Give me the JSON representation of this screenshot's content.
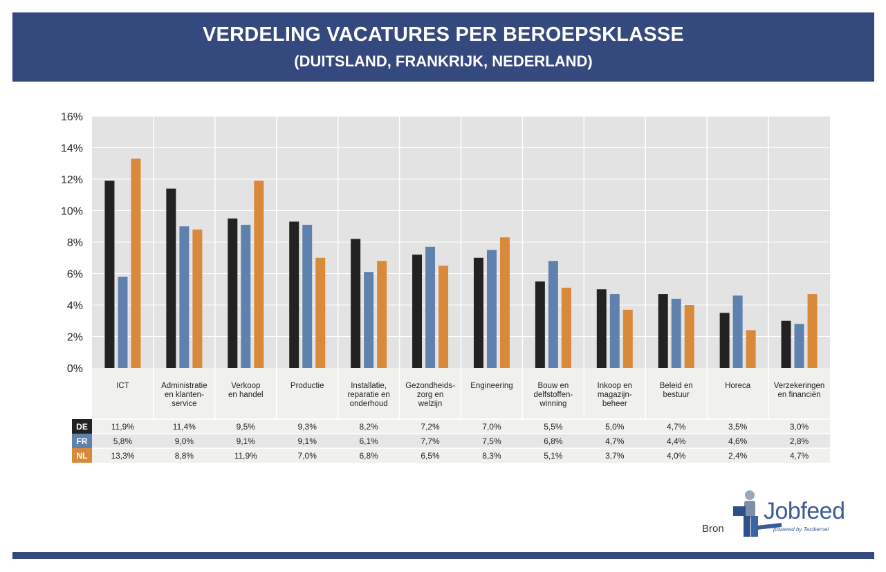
{
  "header": {
    "title": "VERDELING VACATURES PER BEROEPSKLASSE",
    "subtitle": "(DUITSLAND, FRANKRIJK, NEDERLAND)"
  },
  "chart_data": {
    "type": "bar",
    "title": "VERDELING VACATURES PER BEROEPSKLASSE",
    "subtitle": "(DUITSLAND, FRANKRIJK, NEDERLAND)",
    "xlabel": "",
    "ylabel": "",
    "ylim": [
      0,
      16
    ],
    "yticks": [
      "0%",
      "2%",
      "4%",
      "6%",
      "8%",
      "10%",
      "12%",
      "14%",
      "16%"
    ],
    "grid": true,
    "legend": "data table below chart",
    "categories": [
      [
        "ICT"
      ],
      [
        "Administratie",
        "en klanten-",
        "service"
      ],
      [
        "Verkoop",
        "en handel"
      ],
      [
        "Productie"
      ],
      [
        "Installatie,",
        "reparatie en",
        "onderhoud"
      ],
      [
        "Gezondheids-",
        "zorg en",
        "welzijn"
      ],
      [
        "Engineering"
      ],
      [
        "Bouw en",
        "delfstoffen-",
        "winning"
      ],
      [
        "Inkoop en",
        "magazijn-",
        "beheer"
      ],
      [
        "Beleid en",
        "bestuur"
      ],
      [
        "Horeca"
      ],
      [
        "Verzekeringen",
        "en financiën"
      ]
    ],
    "series": [
      {
        "name": "DE",
        "color": "#222222",
        "values": [
          11.9,
          11.4,
          9.5,
          9.3,
          8.2,
          7.2,
          7.0,
          5.5,
          5.0,
          4.7,
          3.5,
          3.0
        ],
        "labels": [
          "11,9%",
          "11,4%",
          "9,5%",
          "9,3%",
          "8,2%",
          "7,2%",
          "7,0%",
          "5,5%",
          "5,0%",
          "4,7%",
          "3,5%",
          "3,0%"
        ]
      },
      {
        "name": "FR",
        "color": "#5f81ad",
        "values": [
          5.8,
          9.0,
          9.1,
          9.1,
          6.1,
          7.7,
          7.5,
          6.8,
          4.7,
          4.4,
          4.6,
          2.8
        ],
        "labels": [
          "5,8%",
          "9,0%",
          "9,1%",
          "9,1%",
          "6,1%",
          "7,7%",
          "7,5%",
          "6,8%",
          "4,7%",
          "4,4%",
          "4,6%",
          "2,8%"
        ]
      },
      {
        "name": "NL",
        "color": "#d9893a",
        "values": [
          13.3,
          8.8,
          11.9,
          7.0,
          6.8,
          6.5,
          8.3,
          5.1,
          3.7,
          4.0,
          2.4,
          4.7
        ],
        "labels": [
          "13,3%",
          "8,8%",
          "11,9%",
          "7,0%",
          "6,8%",
          "6,5%",
          "8,3%",
          "5,1%",
          "3,7%",
          "4,0%",
          "2,4%",
          "4,7%"
        ]
      }
    ]
  },
  "footer": {
    "source_label": "Bron",
    "logo_text": "Jobfeed",
    "logo_tagline": "powered by Textkernel"
  }
}
